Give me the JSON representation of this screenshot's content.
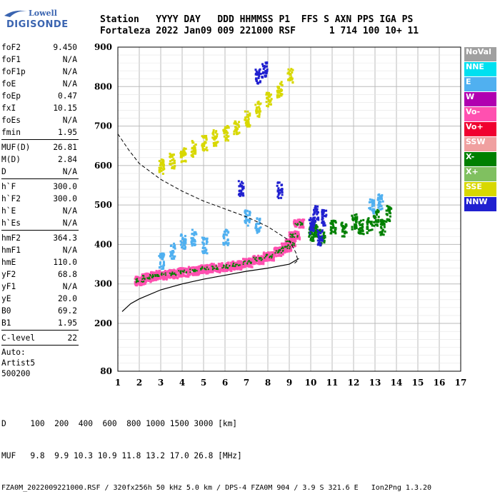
{
  "logo": {
    "line1": "Lowell",
    "line2": "DIGISONDE"
  },
  "header": {
    "row1": "Station   YYYY DAY   DDD HHMMSS P1  FFS S AXN PPS IGA PS",
    "row2": "Fortaleza 2022 Jan09 009 221000 RSF      1 714 100 10+ 11"
  },
  "params": {
    "group1": [
      {
        "name": "foF2",
        "value": "9.450"
      },
      {
        "name": "foF1",
        "value": "N/A"
      },
      {
        "name": "foF1p",
        "value": "N/A"
      },
      {
        "name": "foE",
        "value": "N/A"
      },
      {
        "name": "foEp",
        "value": "0.47"
      },
      {
        "name": "fxI",
        "value": "10.15"
      },
      {
        "name": "foEs",
        "value": "N/A"
      },
      {
        "name": "fmin",
        "value": "1.95"
      }
    ],
    "group2": [
      {
        "name": "MUF(D)",
        "value": "26.81"
      },
      {
        "name": "M(D)",
        "value": "2.84"
      },
      {
        "name": "D",
        "value": "N/A"
      }
    ],
    "group3": [
      {
        "name": "h`F",
        "value": "300.0"
      },
      {
        "name": "h`F2",
        "value": "300.0"
      },
      {
        "name": "h`E",
        "value": "N/A"
      },
      {
        "name": "h`Es",
        "value": "N/A"
      }
    ],
    "group4": [
      {
        "name": "hmF2",
        "value": "364.3"
      },
      {
        "name": "hmF1",
        "value": "N/A"
      },
      {
        "name": "hmE",
        "value": "110.0"
      },
      {
        "name": "yF2",
        "value": "68.8"
      },
      {
        "name": "yF1",
        "value": "N/A"
      },
      {
        "name": "yE",
        "value": "20.0"
      },
      {
        "name": "B0",
        "value": "69.2"
      },
      {
        "name": "B1",
        "value": "1.95"
      }
    ],
    "clevel": {
      "name": "C-level",
      "value": "22"
    },
    "auto": [
      "Auto:",
      "Artist5",
      "500200"
    ]
  },
  "legend": [
    {
      "label": "NoVal",
      "color": "#a0a0a0"
    },
    {
      "label": "NNE",
      "color": "#00e0f0"
    },
    {
      "label": "E",
      "color": "#50b0f0"
    },
    {
      "label": "W",
      "color": "#b000b0"
    },
    {
      "label": "Vo-",
      "color": "#ff50b0"
    },
    {
      "label": "Vo+",
      "color": "#f00030"
    },
    {
      "label": "SSW",
      "color": "#f0a0a0"
    },
    {
      "label": "X-",
      "color": "#008000"
    },
    {
      "label": "X+",
      "color": "#80c060"
    },
    {
      "label": "SSE",
      "color": "#d8d800"
    },
    {
      "label": "NNW",
      "color": "#2020d0"
    }
  ],
  "footer": {
    "line1": "D     100  200  400  600  800 1000 1500 3000 [km]",
    "line2": "MUF   9.8  9.9 10.3 10.9 11.8 13.2 17.0 26.8 [MHz]",
    "line3": "FZA0M_2022009221000.RSF / 320fx256h 50 kHz 5.0 km / DPS-4 FZA0M 904 / 3.9 S 321.6 E   Ion2Png 1.3.20"
  },
  "chart_data": {
    "type": "scatter",
    "xlabel": "",
    "ylabel": "",
    "xlim": [
      1,
      17
    ],
    "ylim": [
      80,
      900
    ],
    "x_ticks": [
      1,
      2,
      3,
      4,
      5,
      6,
      7,
      8,
      9,
      10,
      11,
      12,
      13,
      14,
      15,
      16,
      17
    ],
    "y_ticks": [
      80,
      200,
      300,
      400,
      500,
      600,
      700,
      800,
      900
    ],
    "grid": true,
    "series": [
      {
        "name": "Vo-",
        "color": "#ff50b0",
        "points": [
          [
            2,
            310
          ],
          [
            2.3,
            318
          ],
          [
            2.6,
            322
          ],
          [
            3,
            325
          ],
          [
            3.5,
            328
          ],
          [
            4,
            332
          ],
          [
            4.5,
            336
          ],
          [
            5,
            340
          ],
          [
            5.5,
            343
          ],
          [
            6,
            346
          ],
          [
            6.5,
            350
          ],
          [
            7,
            356
          ],
          [
            7.5,
            364
          ],
          [
            8,
            372
          ],
          [
            8.5,
            384
          ],
          [
            8.8,
            395
          ],
          [
            9,
            405
          ],
          [
            9.2,
            425
          ],
          [
            9.4,
            455
          ]
        ]
      },
      {
        "name": "X-",
        "color": "#008000",
        "points": [
          [
            10,
            430
          ],
          [
            10.2,
            440
          ],
          [
            10.5,
            420
          ],
          [
            11,
            450
          ],
          [
            11.5,
            440
          ],
          [
            12,
            460
          ],
          [
            12.3,
            445
          ],
          [
            12.7,
            450
          ],
          [
            13,
            470
          ],
          [
            13.3,
            445
          ],
          [
            13.6,
            480
          ]
        ]
      },
      {
        "name": "NNW",
        "color": "#2020d0",
        "points": [
          [
            7.5,
            830
          ],
          [
            7.8,
            845
          ],
          [
            6.7,
            545
          ],
          [
            8.5,
            540
          ],
          [
            10,
            450
          ],
          [
            10.2,
            480
          ],
          [
            10.4,
            420
          ],
          [
            10.6,
            470
          ]
        ]
      },
      {
        "name": "SSE",
        "color": "#d8d800",
        "points": [
          [
            3,
            600
          ],
          [
            3.5,
            613
          ],
          [
            4,
            630
          ],
          [
            4.5,
            645
          ],
          [
            5,
            658
          ],
          [
            5.5,
            672
          ],
          [
            6,
            685
          ],
          [
            6.5,
            700
          ],
          [
            7,
            720
          ],
          [
            7.5,
            745
          ],
          [
            8,
            770
          ],
          [
            8.5,
            795
          ],
          [
            9,
            830
          ]
        ]
      },
      {
        "name": "E",
        "color": "#50b0f0",
        "points": [
          [
            3,
            360
          ],
          [
            3.5,
            385
          ],
          [
            4,
            410
          ],
          [
            4.5,
            420
          ],
          [
            5,
            400
          ],
          [
            6,
            420
          ],
          [
            7,
            470
          ],
          [
            7.5,
            450
          ],
          [
            12.8,
            500
          ],
          [
            13.2,
            510
          ]
        ]
      }
    ],
    "profile_curve": [
      [
        1.95,
        300
      ],
      [
        3,
        305
      ],
      [
        4,
        312
      ],
      [
        5,
        320
      ],
      [
        6,
        330
      ],
      [
        7,
        340
      ],
      [
        8,
        350
      ],
      [
        9,
        360
      ],
      [
        9.3,
        375
      ],
      [
        9.45,
        364.3
      ]
    ]
  }
}
